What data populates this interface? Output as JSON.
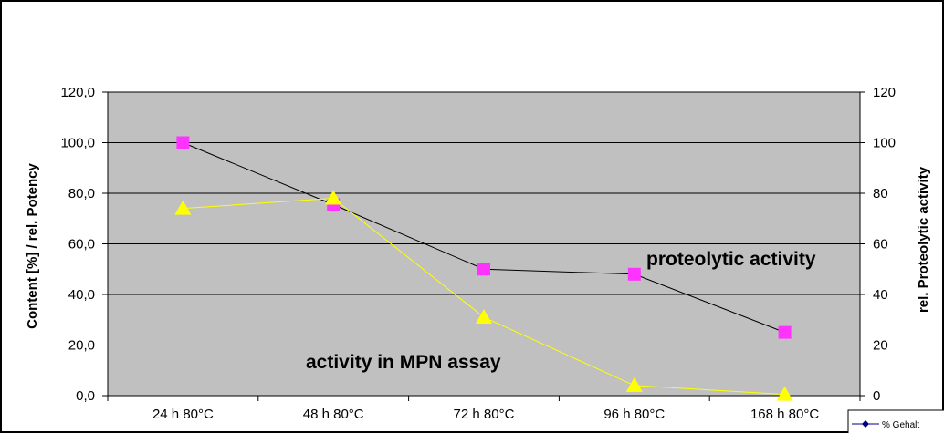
{
  "chart_data": {
    "type": "line",
    "categories": [
      "24 h 80°C",
      "48 h 80°C",
      "72 h 80°C",
      "96 h 80°C",
      "168 h 80°C"
    ],
    "series": [
      {
        "name": "% Gehalt",
        "axis": "right",
        "marker": "square",
        "color": "#000000",
        "marker_color": "#ff33ff",
        "values": [
          100,
          75.5,
          50,
          48,
          25
        ]
      },
      {
        "name": "rel. Potency",
        "axis": "left",
        "marker": "triangle",
        "color": "#ffff00",
        "marker_color": "#ffff00",
        "values": [
          74,
          78,
          31,
          4,
          0.5
        ]
      }
    ],
    "ylabel": "Content [%] / rel. Potency",
    "y2label": "rel. Proteolytic activity",
    "ylim": [
      0,
      120
    ],
    "y2lim": [
      0,
      120
    ],
    "yticks": [
      "0,0",
      "20,0",
      "40,0",
      "60,0",
      "80,0",
      "100,0",
      "120,0"
    ],
    "y2ticks": [
      "0",
      "20",
      "40",
      "60",
      "80",
      "100",
      "120"
    ],
    "annotations": [
      "proteolytic activity",
      "activity in MPN assay"
    ],
    "legend_position": "bottom-right",
    "plot_background": "#c0c0c0",
    "grid": true
  }
}
